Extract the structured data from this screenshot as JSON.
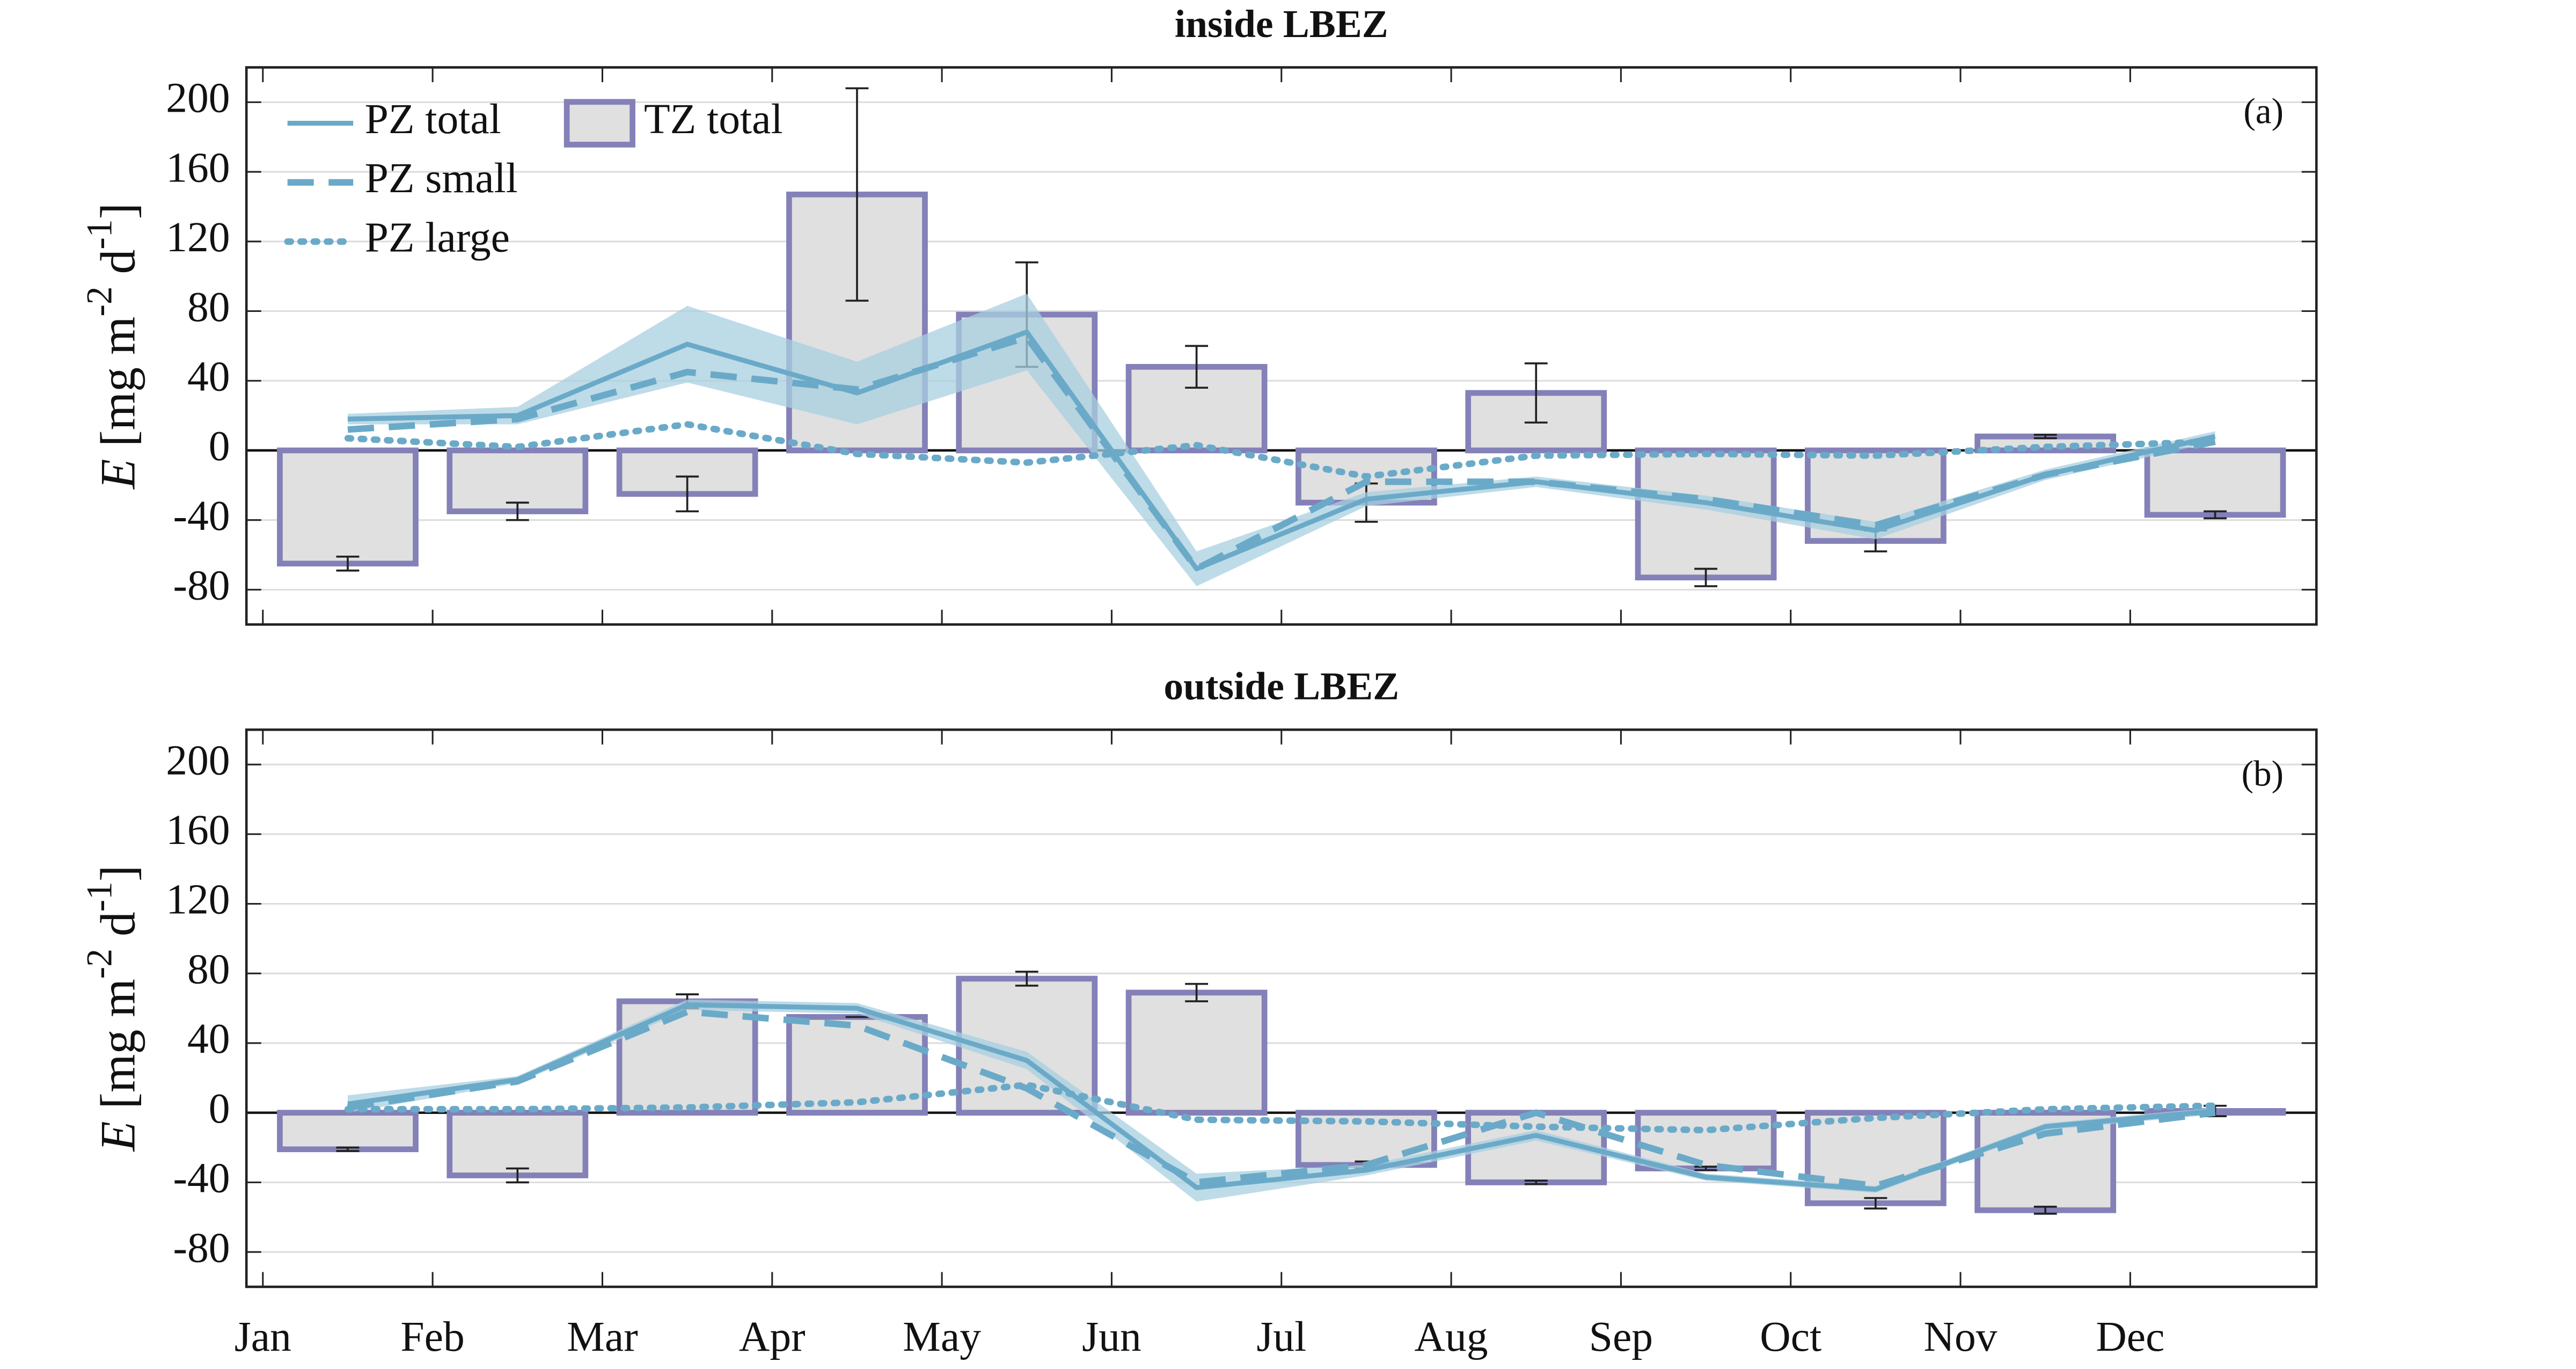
{
  "chart_data": [
    {
      "type": "bar_line",
      "title": "inside LBEZ",
      "panel_label": "(a)",
      "ylabel_parts": [
        "E",
        " [mg m",
        "-2",
        " d",
        "-1",
        "]"
      ],
      "categories": [
        null,
        null,
        null,
        null,
        null,
        null,
        null,
        null,
        null,
        null,
        null,
        null
      ],
      "ylim": [
        -100,
        220
      ],
      "yticks": [
        -80,
        -40,
        0,
        40,
        80,
        120,
        160,
        200
      ],
      "grid": true,
      "legend": "upper left",
      "bars": {
        "name": "TZ total",
        "color": "#e0e0e0",
        "edge_color": "#8481b8",
        "values": [
          -65,
          -35,
          -25,
          147,
          78,
          48,
          -30,
          33,
          -73,
          -52,
          8,
          -37
        ],
        "errors": [
          4,
          5,
          10,
          61,
          30,
          12,
          11,
          17,
          5,
          6,
          1,
          2
        ]
      },
      "series": [
        {
          "name": "PZ total",
          "color": "#6aaac8",
          "style": "solid",
          "spread_color": "#a8cfe0",
          "values": [
            18,
            20,
            61,
            33,
            68,
            -68,
            -28,
            -18,
            -30,
            -46,
            -14,
            8
          ],
          "spread": [
            3,
            5,
            22,
            18,
            22,
            10,
            4,
            3,
            4,
            5,
            3,
            3
          ]
        },
        {
          "name": "PZ small",
          "color": "#6aaac8",
          "style": "dashed",
          "values": [
            12,
            18,
            45,
            35,
            65,
            -68,
            -18,
            -18,
            -28,
            -43,
            -14,
            5
          ]
        },
        {
          "name": "PZ large",
          "color": "#6aaac8",
          "style": "dotted",
          "values": [
            7,
            2,
            15,
            -2,
            -7,
            3,
            -15,
            -3,
            -2,
            -3,
            2,
            5
          ]
        }
      ]
    },
    {
      "type": "bar_line",
      "title": "outside LBEZ",
      "panel_label": "(b)",
      "ylabel_parts": [
        "E",
        " [mg m",
        "-2",
        " d",
        "-1",
        "]"
      ],
      "categories": [
        "Jan",
        "Feb",
        "Mar",
        "Apr",
        "May",
        "Jun",
        "Jul",
        "Aug",
        "Sep",
        "Oct",
        "Nov",
        "Dec"
      ],
      "ylim": [
        -100,
        220
      ],
      "yticks": [
        -80,
        -40,
        0,
        40,
        80,
        120,
        160,
        200
      ],
      "grid": true,
      "bars": {
        "color": "#e0e0e0",
        "edge_color": "#8481b8",
        "values": [
          -21,
          -36,
          64,
          55,
          77,
          69,
          -30,
          -40,
          -32,
          -52,
          -56,
          1
        ],
        "errors": [
          1,
          4,
          4,
          0,
          4,
          5,
          2,
          1,
          1,
          3,
          2,
          3
        ]
      },
      "series": [
        {
          "color": "#6aaac8",
          "style": "solid",
          "spread_color": "#a8cfe0",
          "values": [
            5,
            19,
            62,
            60,
            30,
            -43,
            -33,
            -13,
            -37,
            -44,
            -8,
            1
          ],
          "spread": [
            5,
            2,
            3,
            3,
            5,
            8,
            3,
            3,
            2,
            2,
            2,
            2
          ]
        },
        {
          "color": "#6aaac8",
          "style": "dashed",
          "values": [
            3,
            18,
            58,
            50,
            14,
            -40,
            -30,
            0,
            -30,
            -42,
            -12,
            0
          ]
        },
        {
          "color": "#6aaac8",
          "style": "dotted",
          "values": [
            2,
            2,
            3,
            6,
            16,
            -4,
            -5,
            -8,
            -10,
            -3,
            2,
            4
          ]
        }
      ]
    }
  ]
}
